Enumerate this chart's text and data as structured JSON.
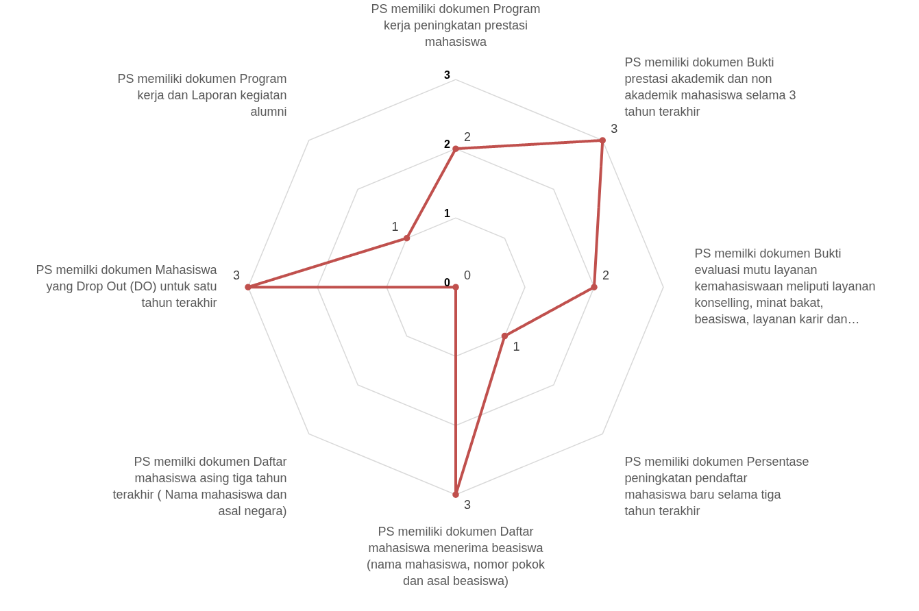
{
  "chart_data": {
    "type": "radar",
    "categories": [
      "PS memiliki dokumen Program kerja peningkatan prestasi mahasiswa",
      "PS memiliki dokumen Bukti prestasi akademik dan non akademik mahasiswa selama 3 tahun terakhir",
      "PS memilki dokumen Bukti evaluasi mutu layanan kemahasiswaan meliputi layanan konselling, minat bakat, beasiswa, layanan karir dan…",
      "PS memiliki dokumen Persentase peningkatan pendaftar mahasiswa baru selama tiga tahun terakhir",
      "PS memiliki dokumen Daftar mahasiswa menerima beasiswa (nama mahasiswa, nomor pokok dan asal beasiswa)",
      "PS memilki dokumen Daftar mahasiswa asing tiga tahun terakhir ( Nama mahasiswa dan asal negara)",
      "PS memilki dokumen Mahasiswa yang Drop Out (DO) untuk satu tahun terakhir",
      "PS memiliki dokumen Program kerja dan Laporan kegiatan alumni"
    ],
    "series": [
      {
        "color": "#c0504d",
        "values": [
          2,
          3,
          2,
          1,
          3,
          0,
          3,
          1
        ]
      }
    ],
    "ylim": [
      0,
      3
    ],
    "yticks": [
      0,
      1,
      2,
      3
    ],
    "grid": true,
    "legend": false,
    "marker": "circle",
    "line_style": "solid",
    "data_labels": true
  }
}
